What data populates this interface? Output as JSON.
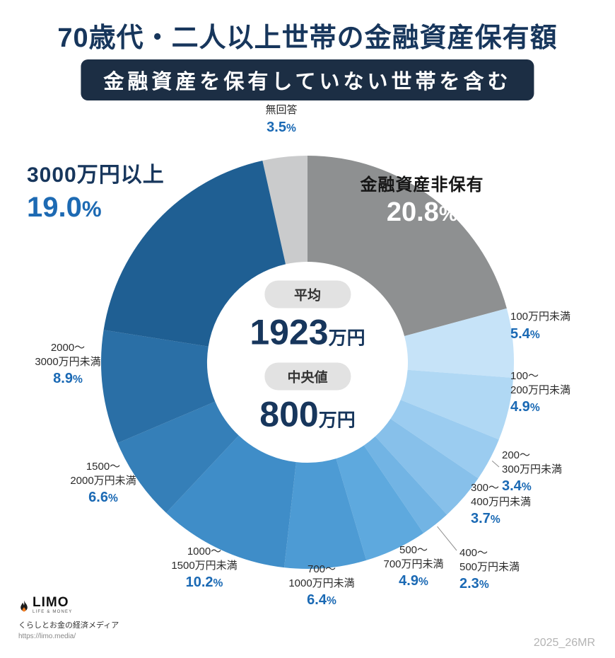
{
  "title": "70歳代・二人以上世帯の金融資産保有額",
  "subtitle": "金融資産を保有していない世帯を含む",
  "center": {
    "average_label": "平均",
    "average_value": "1923",
    "average_unit": "万円",
    "median_label": "中央値",
    "median_value": "800",
    "median_unit": "万円"
  },
  "footer": {
    "logo_text": "LIMO",
    "logo_sub": "LIFE & MONEY",
    "tagline": "くらしとお金の経済メディア",
    "url": "https://limo.media/",
    "watermark": "2025_26MR"
  },
  "colors": {
    "title": "#17365c",
    "badge_bg": "#1c2e44",
    "percent_text": "#1a69b4",
    "pill_bg": "#e2e2e2"
  },
  "chart_data": {
    "type": "pie",
    "style": "donut",
    "title": "70歳代・二人以上世帯の金融資産保有額",
    "subtitle": "金融資産を保有していない世帯を含む",
    "unit": "%",
    "direction": "clockwise",
    "start_angle_deg": -102.6,
    "legend_position": "labels-around-chart",
    "average_man_yen": 1923,
    "median_man_yen": 800,
    "segments": [
      {
        "id": "no-answer",
        "label_lines": [
          "無回答"
        ],
        "value": 3.5,
        "color": "#cacbcc"
      },
      {
        "id": "no-assets",
        "label_lines": [
          "金融資産非保有"
        ],
        "value": 20.8,
        "color": "#8e9091"
      },
      {
        "id": "under-100",
        "label_lines": [
          "100万円未満"
        ],
        "value": 5.4,
        "color": "#c6e3f8"
      },
      {
        "id": "100-200",
        "label_lines": [
          "100〜",
          "200万円未満"
        ],
        "value": 4.9,
        "color": "#b0d8f4"
      },
      {
        "id": "200-300",
        "label_lines": [
          "200〜",
          "300万円未満"
        ],
        "value": 3.4,
        "color": "#9bccf0"
      },
      {
        "id": "300-400",
        "label_lines": [
          "300〜",
          "400万円未満"
        ],
        "value": 3.7,
        "color": "#87c0ea"
      },
      {
        "id": "400-500",
        "label_lines": [
          "400〜",
          "500万円未満"
        ],
        "value": 2.3,
        "color": "#72b4e4"
      },
      {
        "id": "500-700",
        "label_lines": [
          "500〜",
          "700万円未満"
        ],
        "value": 4.9,
        "color": "#5ea9de"
      },
      {
        "id": "700-1000",
        "label_lines": [
          "700〜",
          "1000万円未満"
        ],
        "value": 6.4,
        "color": "#4d9bd4"
      },
      {
        "id": "1000-1500",
        "label_lines": [
          "1000〜",
          "1500万円未満"
        ],
        "value": 10.2,
        "color": "#3f8dc8"
      },
      {
        "id": "1500-2000",
        "label_lines": [
          "1500〜",
          "2000万円未満"
        ],
        "value": 6.6,
        "color": "#357fb8"
      },
      {
        "id": "2000-3000",
        "label_lines": [
          "2000〜",
          "3000万円未満"
        ],
        "value": 8.9,
        "color": "#2a6fa6"
      },
      {
        "id": "over-3000",
        "label_lines": [
          "3000万円以上"
        ],
        "value": 19.0,
        "color": "#1f5f93"
      }
    ]
  }
}
